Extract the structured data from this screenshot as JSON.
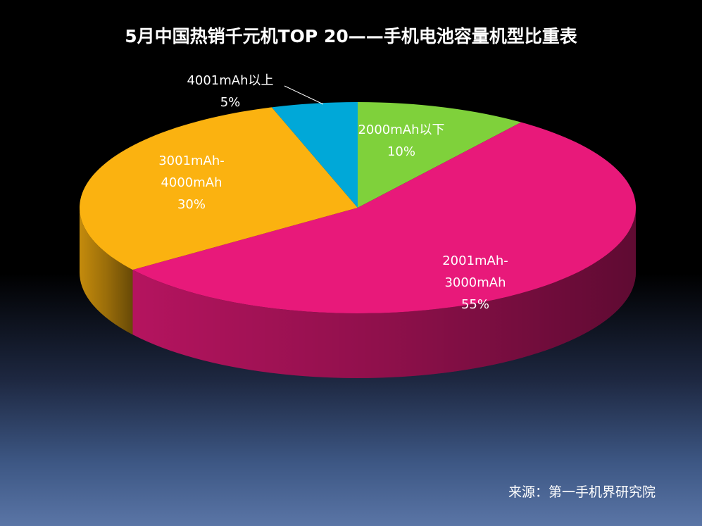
{
  "chart_data": {
    "type": "pie",
    "title": "5月中国热销千元机TOP 20——手机电池容量机型比重表",
    "source": "来源：第一手机界研究院",
    "categories": [
      "2000mAh以下",
      "2001mAh-3000mAh",
      "3001mAh-4000mAh",
      "4001mAh以上"
    ],
    "values": [
      10,
      55,
      30,
      5
    ],
    "labels": [
      "10%",
      "55%",
      "30%",
      "5%"
    ],
    "colors": [
      "#7fd13b",
      "#e8197a",
      "#fbb210",
      "#00a8d8"
    ],
    "style": "3d"
  }
}
